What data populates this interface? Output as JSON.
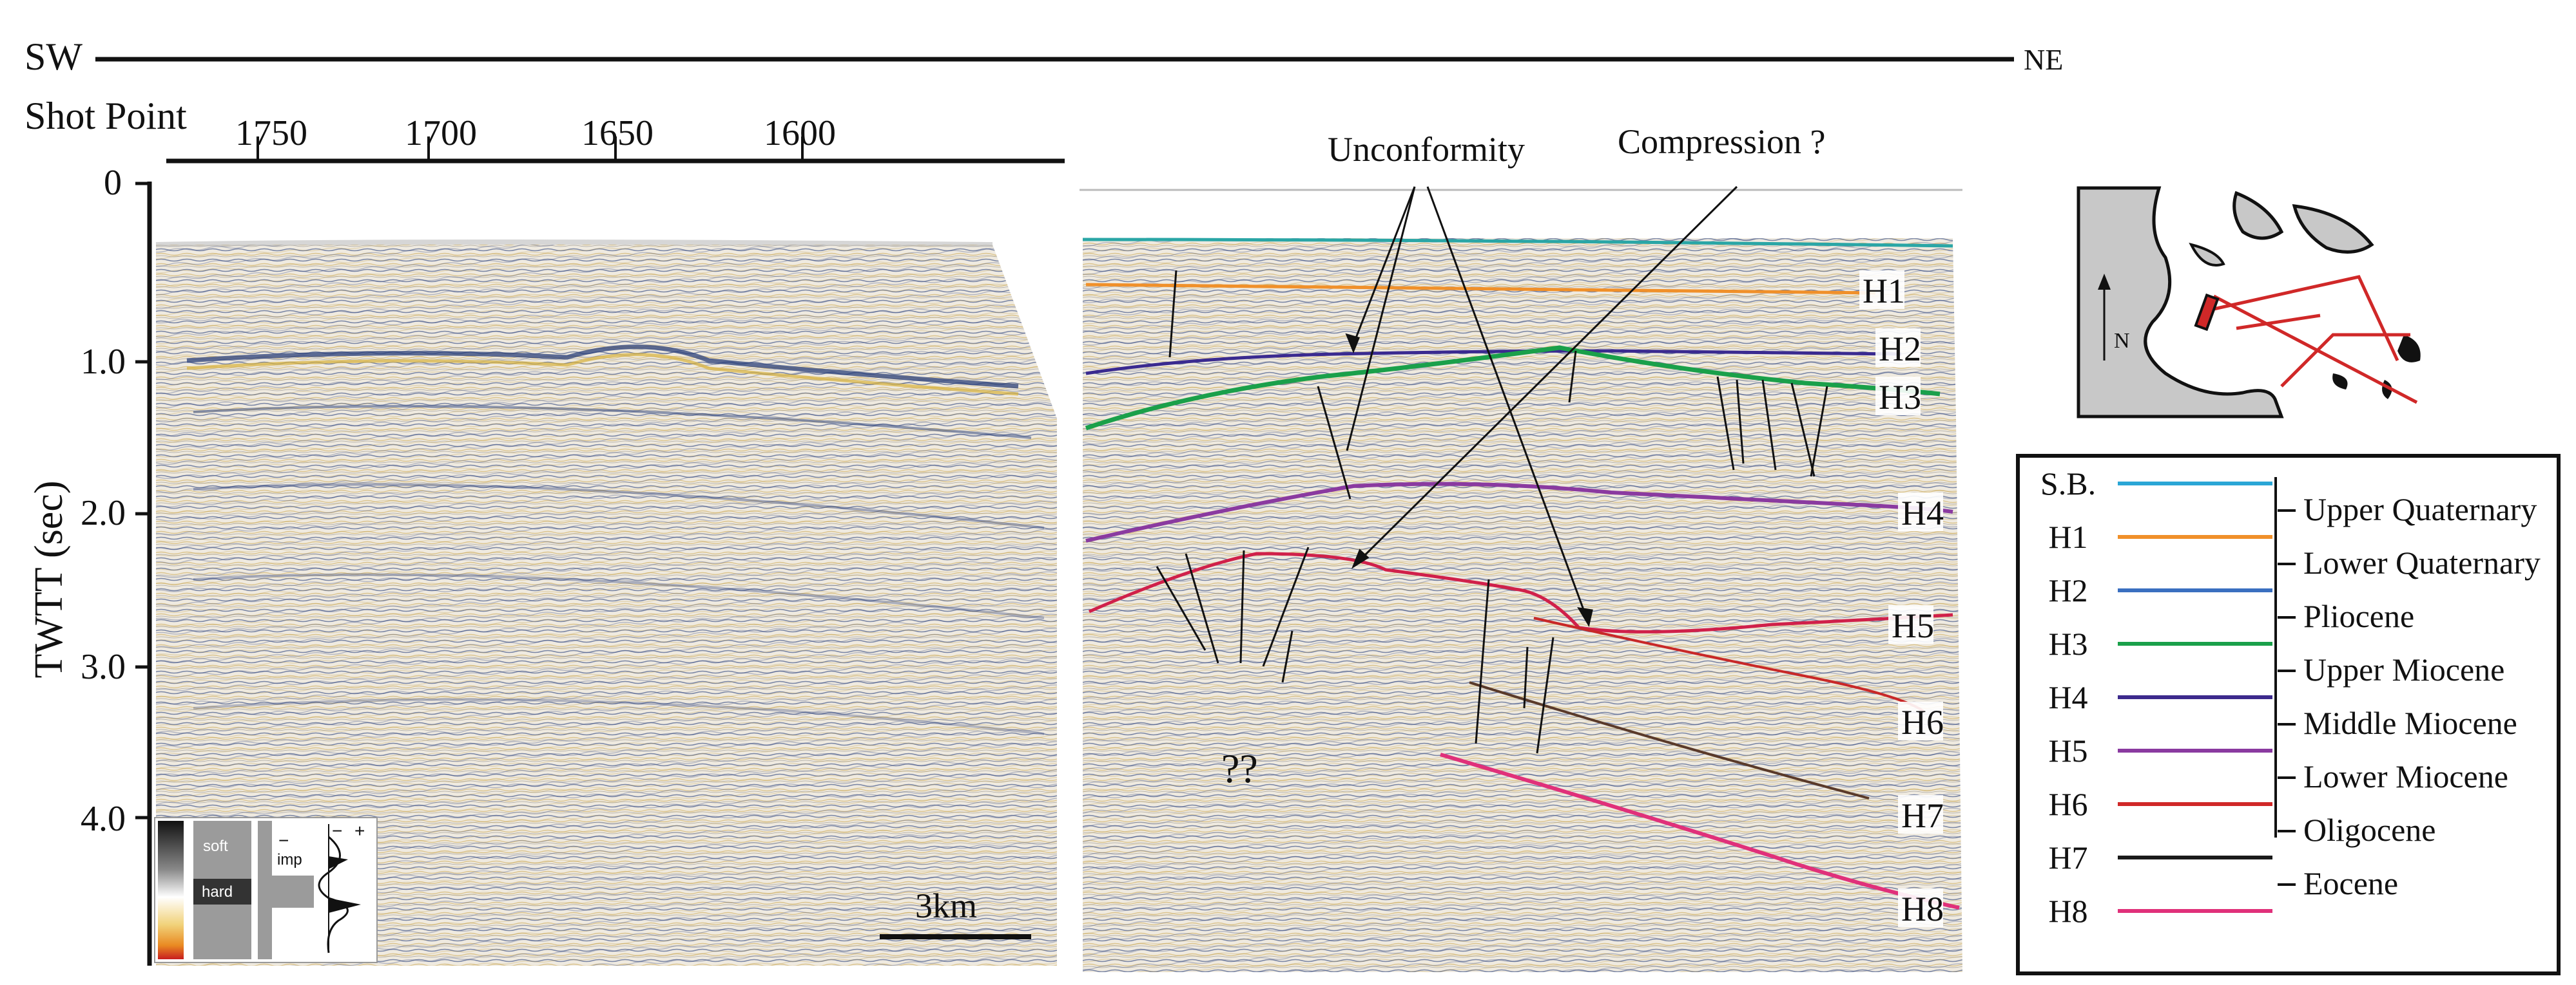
{
  "header": {
    "left_dir": "SW",
    "right_dir": "NE",
    "shot_point_label": "Shot Point",
    "shot_points": [
      "1750",
      "1700",
      "1650",
      "1600"
    ]
  },
  "axis": {
    "label": "TWTT (sec)",
    "ticks": [
      "0",
      "1.0",
      "2.0",
      "3.0",
      "4.0"
    ]
  },
  "scale_bar": "3km",
  "polarity_key": {
    "soft": "soft",
    "hard": "hard",
    "imp": "imp",
    "minus": "−",
    "plus": "+"
  },
  "annotations": {
    "unconformity": "Unconformity",
    "compression": "Compression ?",
    "question": "??"
  },
  "horizon_labels": [
    "H1",
    "H2",
    "H3",
    "H4",
    "H5",
    "H6",
    "H7",
    "H8"
  ],
  "legend": {
    "rows": [
      {
        "code": "S.B.",
        "color": "#2aa6d6"
      },
      {
        "code": "H1",
        "color": "#f0902a"
      },
      {
        "code": "H2",
        "color": "#3a6fc0"
      },
      {
        "code": "H3",
        "color": "#1aa04a"
      },
      {
        "code": "H4",
        "color": "#3c2a8c"
      },
      {
        "code": "H5",
        "color": "#8a3aa0"
      },
      {
        "code": "H6",
        "color": "#d02828"
      },
      {
        "code": "H7",
        "color": "#1a1a1a"
      },
      {
        "code": "H8",
        "color": "#e0307a"
      }
    ],
    "ages": [
      "Upper Quaternary",
      "Lower  Quaternary",
      "Pliocene",
      "Upper  Miocene",
      "Middle Miocene",
      "Lower Miocene",
      "Oligocene",
      "Eocene"
    ]
  },
  "colors": {
    "seismic_bg": "#ece7dc",
    "trough": "#2a3f7a",
    "peak": "#d8b23c",
    "horizon_h1": "#f0902a",
    "horizon_h2": "#3a2a90",
    "horizon_h3": "#1aa04a",
    "horizon_h4": "#8a3aa0",
    "horizon_h5": "#d0204a",
    "horizon_h6": "#c82828",
    "horizon_h7": "#5a3a2a",
    "horizon_h8": "#e0307a",
    "seabed": "#2aa6a6",
    "map_land": "#c8c8c8",
    "map_line": "#d02828"
  }
}
